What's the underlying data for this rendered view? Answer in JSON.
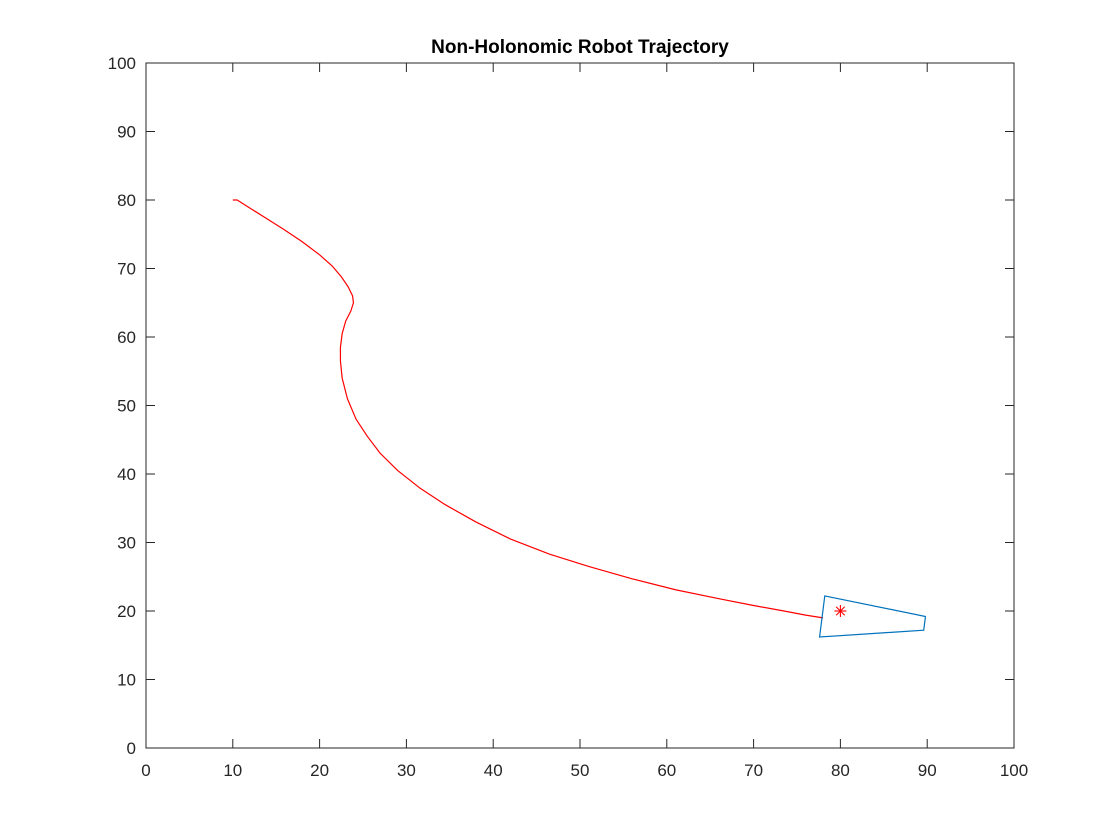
{
  "chart_data": {
    "type": "line",
    "title": "Non-Holonomic Robot Trajectory",
    "xlabel": "",
    "ylabel": "",
    "xlim": [
      0,
      100
    ],
    "ylim": [
      0,
      100
    ],
    "xticks": [
      0,
      10,
      20,
      30,
      40,
      50,
      60,
      70,
      80,
      90,
      100
    ],
    "yticks": [
      0,
      10,
      20,
      30,
      40,
      50,
      60,
      70,
      80,
      90,
      100
    ],
    "grid": false,
    "series": [
      {
        "color": "#ff0000",
        "points": [
          [
            10.0,
            80.0
          ],
          [
            10.5,
            80.0
          ],
          [
            12.0,
            78.8
          ],
          [
            14.0,
            77.2
          ],
          [
            16.0,
            75.6
          ],
          [
            18.0,
            73.9
          ],
          [
            20.0,
            72.0
          ],
          [
            21.5,
            70.3
          ],
          [
            22.5,
            68.8
          ],
          [
            23.3,
            67.3
          ],
          [
            23.8,
            66.0
          ],
          [
            23.9,
            65.0
          ],
          [
            23.6,
            63.8
          ],
          [
            23.0,
            62.3
          ],
          [
            22.6,
            60.5
          ],
          [
            22.4,
            58.5
          ],
          [
            22.4,
            56.5
          ],
          [
            22.6,
            54.0
          ],
          [
            23.2,
            51.0
          ],
          [
            24.2,
            48.0
          ],
          [
            25.5,
            45.5
          ],
          [
            27.0,
            43.0
          ],
          [
            29.0,
            40.5
          ],
          [
            31.5,
            38.0
          ],
          [
            34.5,
            35.5
          ],
          [
            38.0,
            33.0
          ],
          [
            42.0,
            30.5
          ],
          [
            46.5,
            28.3
          ],
          [
            51.0,
            26.5
          ],
          [
            56.0,
            24.7
          ],
          [
            61.0,
            23.1
          ],
          [
            66.0,
            21.8
          ],
          [
            70.0,
            20.8
          ],
          [
            73.5,
            20.0
          ],
          [
            76.0,
            19.4
          ],
          [
            78.0,
            19.0
          ]
        ]
      }
    ],
    "robot": {
      "color": "#0072bd",
      "vertices": [
        [
          78.2,
          22.2
        ],
        [
          89.8,
          19.2
        ],
        [
          89.6,
          17.2
        ],
        [
          77.6,
          16.2
        ]
      ]
    },
    "marker": {
      "type": "asterisk",
      "color": "#ff0000",
      "x": 80.0,
      "y": 20.0
    }
  }
}
